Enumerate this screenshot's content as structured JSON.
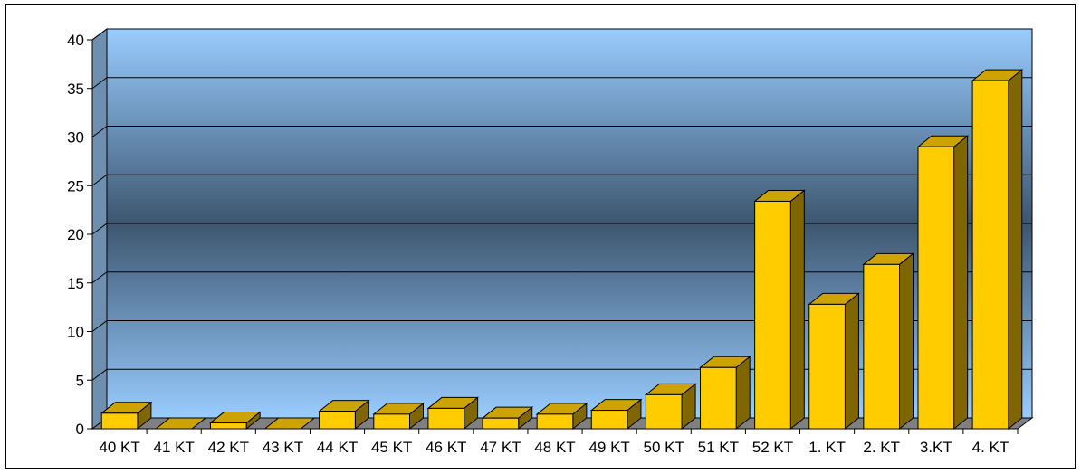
{
  "chart_data": {
    "type": "bar",
    "title": "",
    "xlabel": "",
    "ylabel": "",
    "categories": [
      "40 KT",
      "41 KT",
      "42 KT",
      "43 KT",
      "44 KT",
      "45 KT",
      "46 KT",
      "47 KT",
      "48 KT",
      "49 KT",
      "50 KT",
      "51 KT",
      "52 KT",
      "1. KT",
      "2. KT",
      "3.KT",
      "4. KT"
    ],
    "values": [
      1.6,
      0,
      0.6,
      0,
      1.8,
      1.5,
      2.1,
      1.1,
      1.5,
      1.9,
      3.5,
      6.3,
      23.4,
      12.8,
      16.9,
      29.0,
      35.8
    ],
    "ylim": [
      0,
      40
    ],
    "yticks": [
      "0",
      "5",
      "10",
      "15",
      "20",
      "25",
      "30",
      "35",
      "40"
    ],
    "grid": true,
    "legend": "none",
    "style": "3d",
    "colors": {
      "bar_front": "#FFCC00",
      "bar_top": "#CCA300",
      "bar_side": "#806600",
      "wall_outer": "#99CCFF",
      "wall_inner": "#3D5670",
      "floor": "#808080"
    }
  }
}
